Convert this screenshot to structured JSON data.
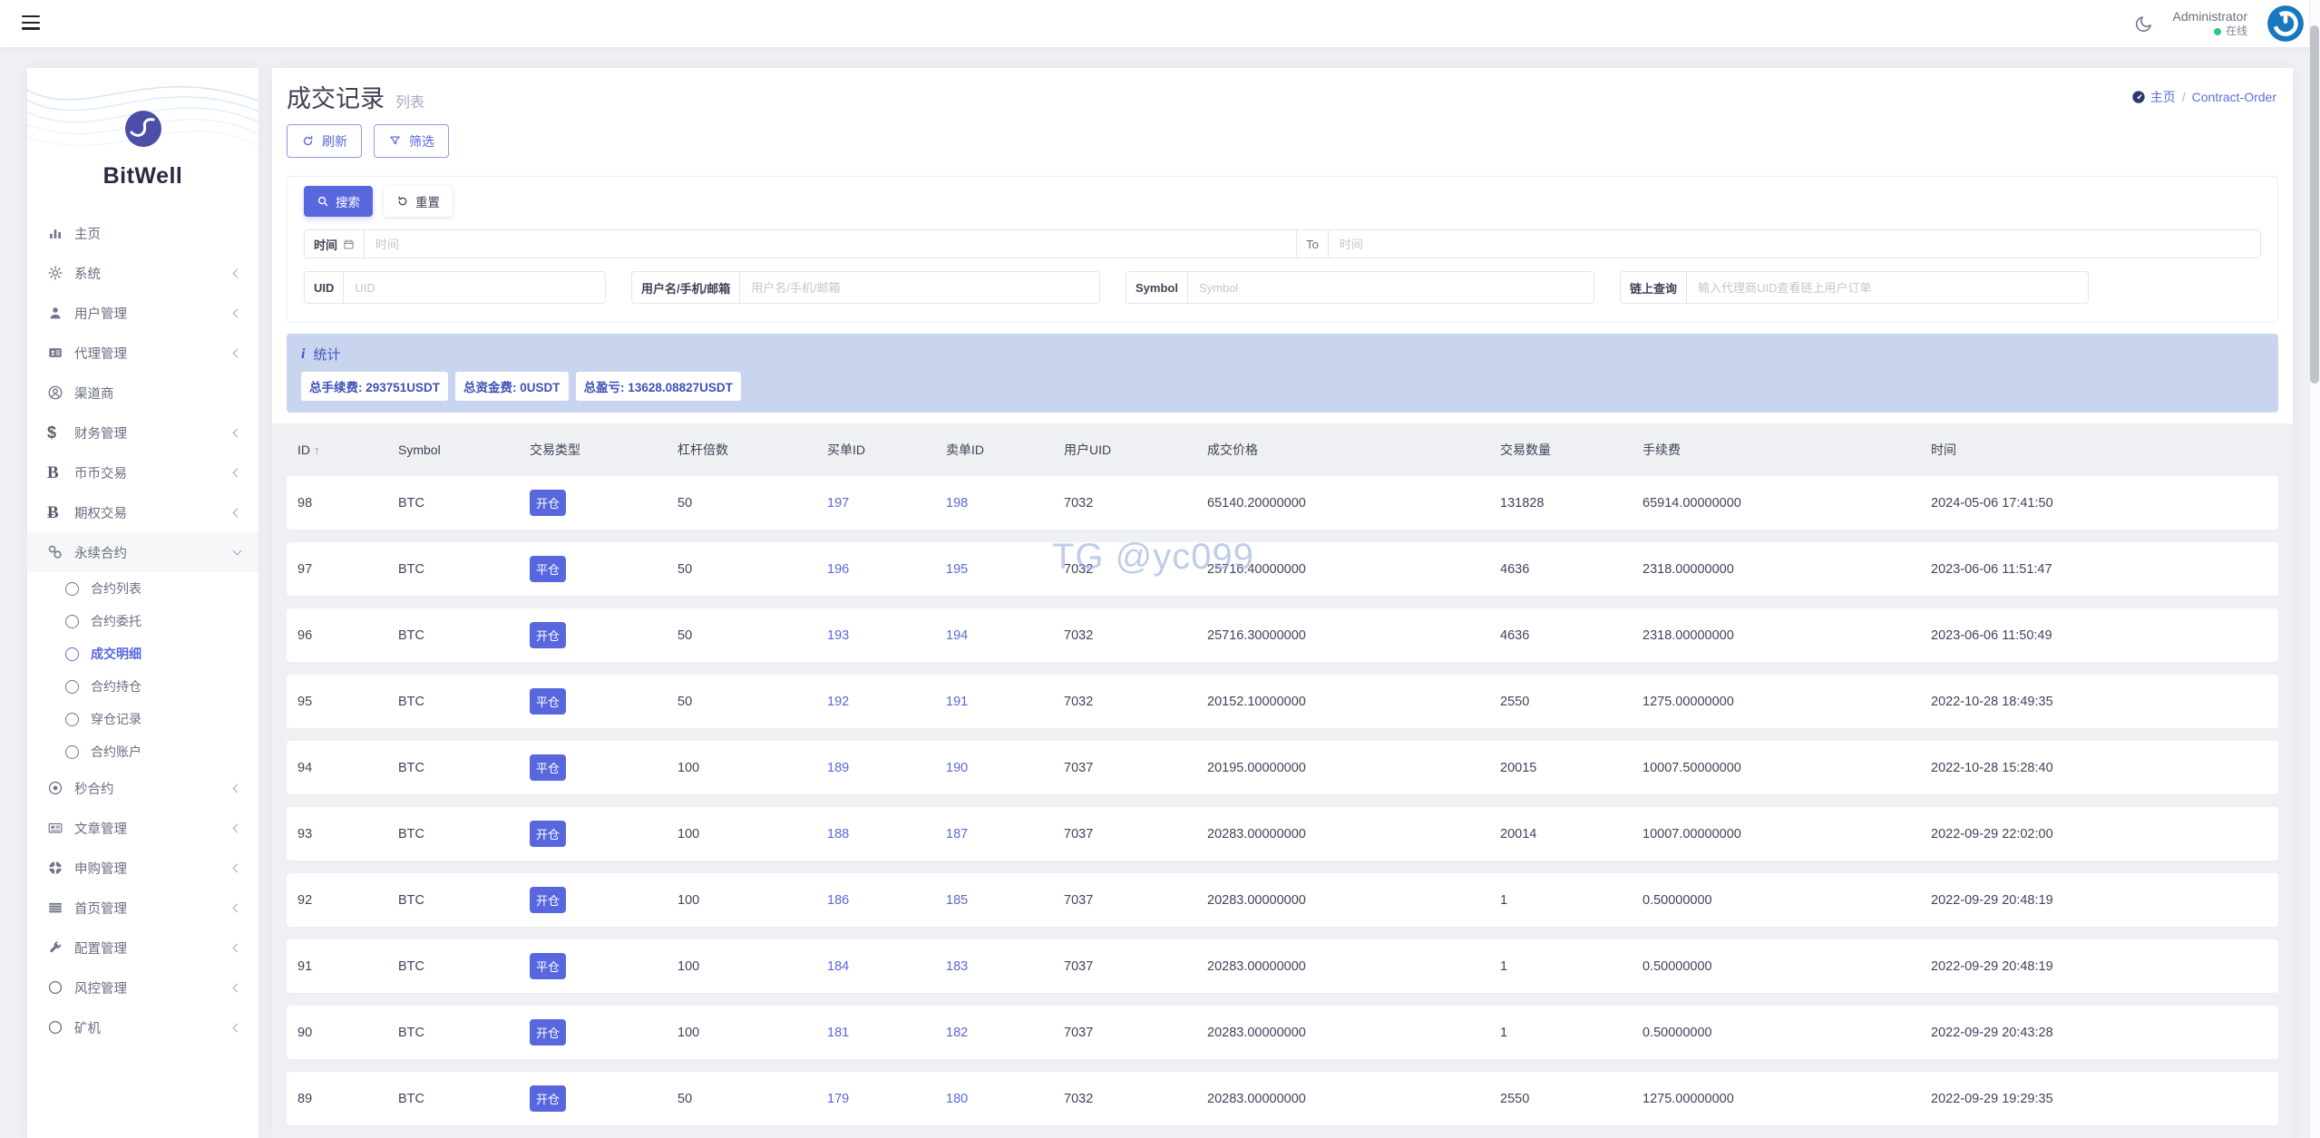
{
  "topbar": {
    "user_name": "Administrator",
    "user_status": "在线"
  },
  "sidebar": {
    "brand": "BitWell",
    "items": [
      {
        "name": "home",
        "icon": "chart-bars-icon",
        "label": "主页"
      },
      {
        "name": "system",
        "icon": "gear-icon",
        "label": "系统",
        "chevron": "left"
      },
      {
        "name": "user-management",
        "icon": "user-icon",
        "label": "用户管理",
        "chevron": "left"
      },
      {
        "name": "agent-management",
        "icon": "id-card-icon",
        "label": "代理管理",
        "chevron": "left"
      },
      {
        "name": "channel-provider",
        "icon": "person-circle-icon",
        "label": "渠道商"
      },
      {
        "name": "finance-management",
        "icon": "dollar-icon",
        "label": "财务管理",
        "chevron": "left"
      },
      {
        "name": "spot-trading",
        "icon": "letter-b-icon",
        "label": "币币交易",
        "chevron": "left"
      },
      {
        "name": "options-trading",
        "icon": "bitcoin-icon",
        "label": "期权交易",
        "chevron": "left"
      },
      {
        "name": "perpetual-contract",
        "icon": "chain-link-icon",
        "label": "永续合约",
        "chevron": "down",
        "active": true,
        "submenu": [
          {
            "name": "contract-list",
            "label": "合约列表"
          },
          {
            "name": "contract-orders",
            "label": "合约委托"
          },
          {
            "name": "trade-details",
            "label": "成交明细",
            "active": true
          },
          {
            "name": "contract-positions",
            "label": "合约持仓"
          },
          {
            "name": "liquidation-records",
            "label": "穿仓记录"
          },
          {
            "name": "contract-accounts",
            "label": "合约账户"
          }
        ]
      },
      {
        "name": "second-contract",
        "icon": "circle-dot-icon",
        "label": "秒合约",
        "chevron": "left"
      },
      {
        "name": "article-management",
        "icon": "newspaper-icon",
        "label": "文章管理",
        "chevron": "left"
      },
      {
        "name": "subscription-management",
        "icon": "life-ring-icon",
        "label": "申购管理",
        "chevron": "left"
      },
      {
        "name": "homepage-management",
        "icon": "menu-lines-icon",
        "label": "首页管理",
        "chevron": "left"
      },
      {
        "name": "config-management",
        "icon": "wrench-icon",
        "label": "配置管理",
        "chevron": "left"
      },
      {
        "name": "risk-management",
        "icon": "circle-icon",
        "label": "风控管理",
        "chevron": "left"
      },
      {
        "name": "miner",
        "icon": "circle-icon",
        "label": "矿机",
        "chevron": "left"
      }
    ]
  },
  "page": {
    "title": "成交记录",
    "subtitle": "列表",
    "breadcrumb": {
      "home": "主页",
      "separator": "/",
      "current": "Contract-Order"
    }
  },
  "toolbar": {
    "refresh_label": "刷新",
    "filter_label": "筛选"
  },
  "search": {
    "submit_label": "搜索",
    "reset_label": "重置",
    "time": {
      "label": "时间",
      "placeholder_from": "时间",
      "to_label": "To",
      "placeholder_to": "时间"
    },
    "fields": [
      {
        "name": "uid",
        "label": "UID",
        "placeholder": "UID"
      },
      {
        "name": "username",
        "label": "用户名/手机/邮箱",
        "placeholder": "用户名/手机/邮箱"
      },
      {
        "name": "symbol",
        "label": "Symbol",
        "placeholder": "Symbol"
      },
      {
        "name": "chain-query",
        "label": "链上查询",
        "placeholder": "输入代理商UID查看链上用户订单"
      }
    ]
  },
  "stats": {
    "title": "统计",
    "badges": [
      "总手续费: 293751USDT",
      "总资金费: 0USDT",
      "总盈亏: 13628.08827USDT"
    ]
  },
  "table": {
    "sort_icon": "↑",
    "headers": [
      "ID",
      "Symbol",
      "交易类型",
      "杠杆倍数",
      "买单ID",
      "卖单ID",
      "用户UID",
      "成交价格",
      "交易数量",
      "手续费",
      "时间"
    ],
    "rows": [
      {
        "id": "98",
        "symbol": "BTC",
        "trade_type": "开仓",
        "leverage": "50",
        "buy_id": "197",
        "sell_id": "198",
        "user_uid": "7032",
        "price": "65140.20000000",
        "quantity": "131828",
        "fee": "65914.00000000",
        "time": "2024-05-06 17:41:50"
      },
      {
        "id": "97",
        "symbol": "BTC",
        "trade_type": "平仓",
        "leverage": "50",
        "buy_id": "196",
        "sell_id": "195",
        "user_uid": "7032",
        "price": "25716.40000000",
        "quantity": "4636",
        "fee": "2318.00000000",
        "time": "2023-06-06 11:51:47"
      },
      {
        "id": "96",
        "symbol": "BTC",
        "trade_type": "开仓",
        "leverage": "50",
        "buy_id": "193",
        "sell_id": "194",
        "user_uid": "7032",
        "price": "25716.30000000",
        "quantity": "4636",
        "fee": "2318.00000000",
        "time": "2023-06-06 11:50:49"
      },
      {
        "id": "95",
        "symbol": "BTC",
        "trade_type": "平仓",
        "leverage": "50",
        "buy_id": "192",
        "sell_id": "191",
        "user_uid": "7032",
        "price": "20152.10000000",
        "quantity": "2550",
        "fee": "1275.00000000",
        "time": "2022-10-28 18:49:35"
      },
      {
        "id": "94",
        "symbol": "BTC",
        "trade_type": "平仓",
        "leverage": "100",
        "buy_id": "189",
        "sell_id": "190",
        "user_uid": "7037",
        "price": "20195.00000000",
        "quantity": "20015",
        "fee": "10007.50000000",
        "time": "2022-10-28 15:28:40"
      },
      {
        "id": "93",
        "symbol": "BTC",
        "trade_type": "开仓",
        "leverage": "100",
        "buy_id": "188",
        "sell_id": "187",
        "user_uid": "7037",
        "price": "20283.00000000",
        "quantity": "20014",
        "fee": "10007.00000000",
        "time": "2022-09-29 22:02:00"
      },
      {
        "id": "92",
        "symbol": "BTC",
        "trade_type": "开仓",
        "leverage": "100",
        "buy_id": "186",
        "sell_id": "185",
        "user_uid": "7037",
        "price": "20283.00000000",
        "quantity": "1",
        "fee": "0.50000000",
        "time": "2022-09-29 20:48:19"
      },
      {
        "id": "91",
        "symbol": "BTC",
        "trade_type": "平仓",
        "leverage": "100",
        "buy_id": "184",
        "sell_id": "183",
        "user_uid": "7037",
        "price": "20283.00000000",
        "quantity": "1",
        "fee": "0.50000000",
        "time": "2022-09-29 20:48:19"
      },
      {
        "id": "90",
        "symbol": "BTC",
        "trade_type": "开仓",
        "leverage": "100",
        "buy_id": "181",
        "sell_id": "182",
        "user_uid": "7037",
        "price": "20283.00000000",
        "quantity": "1",
        "fee": "0.50000000",
        "time": "2022-09-29 20:43:28"
      },
      {
        "id": "89",
        "symbol": "BTC",
        "trade_type": "开仓",
        "leverage": "50",
        "buy_id": "179",
        "sell_id": "180",
        "user_uid": "7032",
        "price": "20283.00000000",
        "quantity": "2550",
        "fee": "1275.00000000",
        "time": "2022-09-29 19:29:35"
      }
    ]
  },
  "watermark": "TG @yc099",
  "colors": {
    "primary": "#5867dd",
    "link": "#5a68d5",
    "stats_bg": "#c9d5ef",
    "stats_text": "#3d51b5",
    "online_green": "#2fc787",
    "avatar_blue": "#1878be",
    "page_bg": "#eef0f4"
  }
}
